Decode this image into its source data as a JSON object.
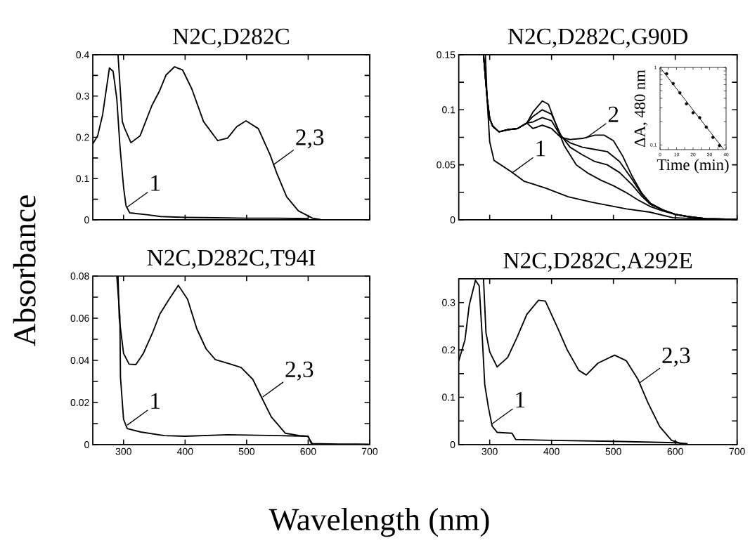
{
  "chart_data": [
    {
      "type": "line",
      "title": "N2C,D282C",
      "ylabel": "Absorbance",
      "xlim": [
        250,
        700
      ],
      "ylim": [
        0,
        0.4
      ],
      "xticks": [
        300,
        400,
        500,
        600,
        700
      ],
      "yticks": [
        0,
        {
          "value": 0.05,
          "label": null
        },
        0.1,
        {
          "value": 0.15,
          "label": null
        },
        0.2,
        {
          "value": 0.25,
          "label": null
        },
        0.3,
        {
          "value": 0.35,
          "label": null
        },
        0.4
      ],
      "tick_labels": "y",
      "series": [
        {
          "color": "#000000",
          "x": [
            250,
            258,
            266,
            277,
            283,
            289,
            294,
            300,
            304,
            310,
            340,
            360,
            400,
            450,
            500,
            550,
            600
          ],
          "values": [
            0.184,
            0.204,
            0.255,
            0.368,
            0.36,
            0.294,
            0.181,
            0.079,
            0.034,
            0.017,
            0.012,
            0.008,
            0.006,
            0.005,
            0.004,
            0.004,
            0.003
          ]
        },
        {
          "color": "#000000",
          "x": [
            291,
            298,
            302,
            312,
            327,
            346,
            358,
            369,
            383,
            396,
            411,
            430,
            453,
            469,
            484,
            499,
            519,
            538,
            549,
            565,
            584,
            607,
            620
          ],
          "values": [
            0.4,
            0.238,
            0.221,
            0.187,
            0.204,
            0.277,
            0.311,
            0.351,
            0.371,
            0.363,
            0.317,
            0.238,
            0.192,
            0.198,
            0.226,
            0.24,
            0.221,
            0.158,
            0.113,
            0.056,
            0.022,
            0.004,
            0.001
          ]
        }
      ],
      "annotations": [
        {
          "text": "1",
          "x": 306,
          "y": 0.031
        },
        {
          "text": "2,3",
          "x": 543,
          "y": 0.133
        }
      ]
    },
    {
      "type": "line",
      "title": "N2C,D282C,G90D",
      "xlim": [
        250,
        700
      ],
      "ylim": [
        0,
        0.15
      ],
      "xticks": [
        300,
        400,
        500,
        600,
        700
      ],
      "yticks": [
        0,
        {
          "value": 0.025,
          "label": null
        },
        0.05,
        {
          "value": 0.075,
          "label": null
        },
        0.1,
        {
          "value": 0.125,
          "label": null
        },
        0.15
      ],
      "tick_labels": "y",
      "series": [
        {
          "color": "#000000",
          "x": [
            293,
            296,
            300,
            307,
            334,
            356,
            390,
            427,
            465,
            521,
            559,
            596,
            633,
            700
          ],
          "values": [
            0.15,
            0.108,
            0.071,
            0.054,
            0.044,
            0.035,
            0.029,
            0.021,
            0.016,
            0.01,
            0.007,
            0.002,
            0.001,
            0.0005
          ]
        },
        {
          "color": "#000000",
          "x": [
            290,
            296,
            300,
            305,
            315,
            330,
            345,
            360,
            370,
            385,
            395,
            405,
            420,
            440,
            460,
            480,
            500,
            520,
            540,
            560,
            580,
            600,
            620,
            650,
            700
          ],
          "values": [
            0.15,
            0.11,
            0.092,
            0.085,
            0.08,
            0.082,
            0.083,
            0.088,
            0.098,
            0.108,
            0.105,
            0.09,
            0.068,
            0.05,
            0.042,
            0.036,
            0.031,
            0.025,
            0.018,
            0.012,
            0.008,
            0.005,
            0.003,
            0.001,
            0.0005
          ]
        },
        {
          "color": "#000000",
          "x": [
            290,
            296,
            300,
            305,
            315,
            330,
            345,
            360,
            370,
            385,
            400,
            415,
            430,
            450,
            470,
            490,
            510,
            530,
            545,
            560,
            580,
            600,
            620,
            650,
            700
          ],
          "values": [
            0.15,
            0.11,
            0.092,
            0.085,
            0.08,
            0.082,
            0.083,
            0.088,
            0.094,
            0.1,
            0.096,
            0.077,
            0.066,
            0.059,
            0.053,
            0.05,
            0.043,
            0.032,
            0.022,
            0.014,
            0.009,
            0.005,
            0.003,
            0.001,
            0.0005
          ]
        },
        {
          "color": "#000000",
          "x": [
            290,
            296,
            300,
            305,
            315,
            330,
            345,
            360,
            370,
            385,
            400,
            415,
            430,
            450,
            470,
            490,
            510,
            530,
            545,
            560,
            580,
            600,
            620,
            650,
            700
          ],
          "values": [
            0.15,
            0.11,
            0.092,
            0.085,
            0.08,
            0.082,
            0.083,
            0.088,
            0.089,
            0.093,
            0.09,
            0.076,
            0.07,
            0.066,
            0.064,
            0.062,
            0.053,
            0.037,
            0.024,
            0.015,
            0.009,
            0.005,
            0.003,
            0.001,
            0.0005
          ]
        },
        {
          "color": "#000000",
          "x": [
            290,
            296,
            300,
            305,
            315,
            330,
            345,
            360,
            370,
            385,
            400,
            415,
            430,
            450,
            470,
            485,
            500,
            515,
            530,
            545,
            560,
            580,
            600,
            620,
            650,
            700
          ],
          "values": [
            0.15,
            0.11,
            0.092,
            0.085,
            0.08,
            0.082,
            0.083,
            0.088,
            0.083,
            0.086,
            0.083,
            0.075,
            0.073,
            0.074,
            0.077,
            0.077,
            0.072,
            0.058,
            0.04,
            0.025,
            0.015,
            0.009,
            0.005,
            0.003,
            0.001,
            0.0005
          ]
        }
      ],
      "annotations": [
        {
          "text": "1",
          "x": 337,
          "y": 0.043
        },
        {
          "text": "2",
          "x": 455,
          "y": 0.074
        }
      ]
    },
    {
      "type": "line",
      "title": "N2C,D282C,T94I",
      "xlabel": "Wavelength (nm)",
      "xlim": [
        250,
        700
      ],
      "ylim": [
        0,
        0.08
      ],
      "xticks": [
        300,
        400,
        500,
        600,
        700
      ],
      "yticks": [
        0,
        {
          "value": 0.01,
          "label": null
        },
        0.02,
        {
          "value": 0.03,
          "label": null
        },
        0.04,
        {
          "value": 0.05,
          "label": null
        },
        0.06,
        {
          "value": 0.07,
          "label": null
        },
        0.08
      ],
      "series": [
        {
          "color": "#000000",
          "x": [
            289,
            294,
            295,
            300,
            306,
            328,
            366,
            400,
            470,
            550,
            600,
            605,
            650,
            700
          ],
          "values": [
            0.08,
            0.061,
            0.032,
            0.012,
            0.0076,
            0.006,
            0.0043,
            0.004,
            0.0047,
            0.0043,
            0.004,
            0.0005,
            0.0003,
            0.0002
          ]
        },
        {
          "color": "#000000",
          "x": [
            291,
            293,
            300,
            309,
            320,
            332,
            347,
            359,
            374,
            389,
            404,
            419,
            434,
            449,
            472,
            491,
            510,
            525,
            540,
            563,
            586,
            599,
            607
          ],
          "values": [
            0.08,
            0.06,
            0.0433,
            0.0382,
            0.038,
            0.0432,
            0.053,
            0.062,
            0.069,
            0.0756,
            0.069,
            0.055,
            0.0455,
            0.0404,
            0.0384,
            0.0366,
            0.031,
            0.022,
            0.0132,
            0.0054,
            0.0043,
            0.004,
            0.0003
          ]
        }
      ],
      "annotations": [
        {
          "text": "1",
          "x": 306,
          "y": 0.0093
        },
        {
          "text": "2,3",
          "x": 526,
          "y": 0.0226
        }
      ]
    },
    {
      "type": "line",
      "title": "N2C,D282C,A292E",
      "xlim": [
        250,
        700
      ],
      "ylim": [
        0,
        0.35
      ],
      "xticks": [
        300,
        400,
        500,
        600,
        700
      ],
      "yticks": [
        0,
        {
          "value": 0.05,
          "label": null
        },
        0.1,
        {
          "value": 0.15,
          "label": null
        },
        0.2,
        {
          "value": 0.25,
          "label": null
        },
        0.3
      ],
      "series": [
        {
          "color": "#000000",
          "x": [
            250,
            260,
            267,
            277,
            283,
            288,
            292,
            298,
            304,
            312,
            336,
            342,
            400,
            500,
            600,
            620
          ],
          "values": [
            0.177,
            0.221,
            0.295,
            0.347,
            0.335,
            0.226,
            0.127,
            0.078,
            0.039,
            0.026,
            0.024,
            0.011,
            0.009,
            0.007,
            0.004,
            0.002
          ]
        },
        {
          "color": "#000000",
          "x": [
            290,
            294,
            300,
            312,
            329,
            344,
            360,
            379,
            390,
            410,
            425,
            444,
            456,
            475,
            502,
            521,
            540,
            556,
            575,
            594,
            613
          ],
          "values": [
            0.35,
            0.236,
            0.196,
            0.164,
            0.184,
            0.226,
            0.275,
            0.305,
            0.303,
            0.246,
            0.201,
            0.157,
            0.147,
            0.172,
            0.189,
            0.177,
            0.137,
            0.088,
            0.038,
            0.009,
            0.001
          ]
        }
      ],
      "annotations": [
        {
          "text": "1",
          "x": 304,
          "y": 0.044
        },
        {
          "text": "2,3",
          "x": 542,
          "y": 0.13
        }
      ]
    },
    {
      "type": "scatter",
      "xlabel": "Time (min)",
      "ylabel": "ΔA, 480 nm",
      "log": "y",
      "xlim": [
        0,
        40
      ],
      "ylim": [
        0.087,
        1
      ],
      "xticks": [
        0,
        {
          "value": 5,
          "label": null
        },
        10,
        {
          "value": 15,
          "label": null
        },
        20,
        {
          "value": 25,
          "label": null
        },
        30,
        {
          "value": 35,
          "label": null
        },
        40
      ],
      "yticks": [
        0.1,
        {
          "value": 0.2,
          "label": null
        },
        {
          "value": 0.3,
          "label": null
        },
        {
          "value": 0.4,
          "label": null
        },
        {
          "value": 0.5,
          "label": null
        },
        {
          "value": 0.6,
          "label": null
        },
        {
          "value": 0.7,
          "label": null
        },
        {
          "value": 0.8,
          "label": null
        },
        {
          "value": 0.9,
          "label": null
        },
        1
      ],
      "series": [
        {
          "color": "#000000",
          "marker": "circle",
          "x": [
            4,
            8,
            12,
            16,
            20,
            24,
            28,
            32,
            36
          ],
          "values": [
            0.83,
            0.62,
            0.47,
            0.34,
            0.26,
            0.225,
            0.17,
            0.125,
            0.098
          ]
        },
        {
          "type": "line",
          "color": "#000000",
          "x": [
            0,
            38.5
          ],
          "values": [
            1,
            0.088
          ]
        }
      ]
    }
  ]
}
